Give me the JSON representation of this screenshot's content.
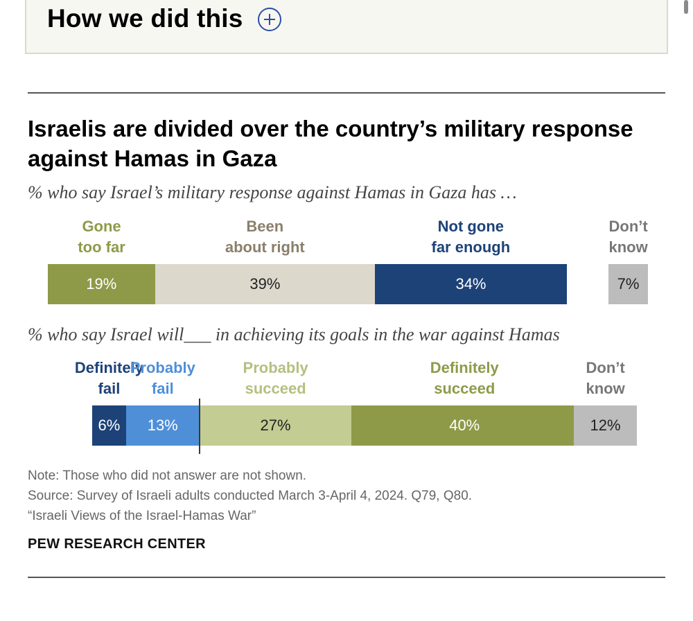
{
  "header": {
    "how_title": "How we did this",
    "expand_icon": "plus-circle-icon"
  },
  "chart_data": [
    {
      "type": "stacked-bar",
      "title": "Israelis are divided over the country’s military response against Hamas in Gaza",
      "subtitle": "% who say Israel’s military response against Hamas in Gaza has …",
      "unit": "%",
      "segments": [
        {
          "label": [
            "Gone",
            "too far"
          ],
          "value": 19,
          "display": "19%",
          "color": "#8f9a49",
          "label_color": "#8f9a49",
          "text_color": "#ffffff"
        },
        {
          "label": [
            "Been",
            "about right"
          ],
          "value": 39,
          "display": "39%",
          "color": "#dcd8cc",
          "label_color": "#8a7f6a",
          "text_color": "#222222"
        },
        {
          "label": [
            "Not gone",
            "far enough"
          ],
          "value": 34,
          "display": "34%",
          "color": "#1d4278",
          "label_color": "#1d4278",
          "text_color": "#ffffff"
        }
      ],
      "separate": {
        "label": [
          "Don’t",
          "know"
        ],
        "value": 7,
        "display": "7%",
        "color": "#bcbcbc",
        "label_color": "#777777",
        "text_color": "#222222"
      }
    },
    {
      "type": "diverging-bar",
      "subtitle": "% who say Israel will___ in achieving its goals in the war against Hamas",
      "unit": "%",
      "segments": [
        {
          "label": [
            "Definitely",
            "fail"
          ],
          "value": 6,
          "display": "6%",
          "color": "#1d4278",
          "label_color": "#1d4278",
          "text_color": "#ffffff"
        },
        {
          "label": [
            "Probably",
            "fail"
          ],
          "value": 13,
          "display": "13%",
          "color": "#4f8fd8",
          "label_color": "#4f8fd8",
          "text_color": "#ffffff"
        },
        {
          "label": [
            "Probably",
            "succeed"
          ],
          "value": 27,
          "display": "27%",
          "color": "#c3cc92",
          "label_color": "#b6bf7f",
          "text_color": "#222222"
        },
        {
          "label": [
            "Definitely",
            "succeed"
          ],
          "value": 40,
          "display": "40%",
          "color": "#8f9a49",
          "label_color": "#8f9a49",
          "text_color": "#ffffff"
        }
      ],
      "separate": {
        "label": [
          "Don’t",
          "know"
        ],
        "value": 12,
        "display": "12%",
        "color": "#bcbcbc",
        "label_color": "#777777",
        "text_color": "#222222"
      }
    }
  ],
  "footer": {
    "note": "Note: Those who did not answer are not shown.",
    "source": "Source: Survey of Israeli adults conducted March 3-April 4, 2024. Q79, Q80.",
    "report": "“Israeli Views of the Israel-Hamas War”",
    "brand": "PEW RESEARCH CENTER"
  }
}
